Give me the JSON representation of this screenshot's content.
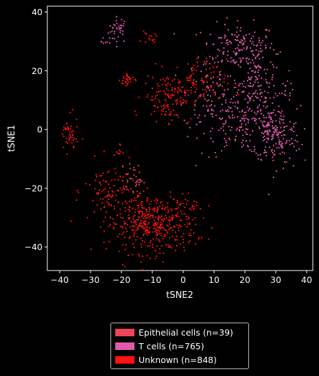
{
  "chart_data": {
    "type": "scatter",
    "xlabel": "tSNE2",
    "ylabel": "tSNE1",
    "xlim": [
      -44,
      42
    ],
    "ylim": [
      -48,
      42
    ],
    "x_ticks": [
      "−40",
      "−30",
      "−20",
      "−10",
      "0",
      "10",
      "20",
      "30",
      "40"
    ],
    "y_ticks": [
      "−40",
      "−20",
      "0",
      "20",
      "40"
    ],
    "legend_position": "below",
    "series": [
      {
        "name": "Epithelial cells (n=39)",
        "color": "#ee4455",
        "n": 39,
        "clusters": [
          {
            "x": -16,
            "y": -17,
            "sx": 1.5,
            "sy": 2.5,
            "n": 39
          }
        ]
      },
      {
        "name": "T cells (n=765)",
        "color": "#e05aad",
        "n": 765,
        "clusters": [
          {
            "x": -21,
            "y": 34,
            "sx": 1.6,
            "sy": 2.2,
            "n": 35
          },
          {
            "x": -25,
            "y": 30,
            "sx": 0.8,
            "sy": 0.8,
            "n": 8
          },
          {
            "x": 18,
            "y": 28,
            "sx": 6,
            "sy": 4,
            "n": 160
          },
          {
            "x": 24,
            "y": 17,
            "sx": 3,
            "sy": 5,
            "n": 100
          },
          {
            "x": 20,
            "y": 3,
            "sx": 7,
            "sy": 6,
            "n": 200
          },
          {
            "x": 30,
            "y": -2,
            "sx": 4,
            "sy": 5,
            "n": 170
          },
          {
            "x": 8,
            "y": 12,
            "sx": 4,
            "sy": 6,
            "n": 80
          },
          {
            "x": 33,
            "y": 13,
            "sx": 1.2,
            "sy": 1.5,
            "n": 12
          }
        ]
      },
      {
        "name": "Unknown (n=848)",
        "color": "#ff1111",
        "n": 848,
        "clusters": [
          {
            "x": -10,
            "y": -32,
            "sx": 7,
            "sy": 5,
            "n": 440
          },
          {
            "x": -24,
            "y": -21,
            "sx": 4,
            "sy": 5,
            "n": 85
          },
          {
            "x": -37,
            "y": -2,
            "sx": 1.5,
            "sy": 3,
            "n": 45
          },
          {
            "x": -18,
            "y": 17,
            "sx": 1.2,
            "sy": 1.5,
            "n": 28
          },
          {
            "x": -11,
            "y": 31,
            "sx": 1.2,
            "sy": 1,
            "n": 15
          },
          {
            "x": -5,
            "y": 11,
            "sx": 4,
            "sy": 4,
            "n": 120
          },
          {
            "x": 4,
            "y": 16,
            "sx": 5,
            "sy": 4,
            "n": 95
          },
          {
            "x": -21,
            "y": -7,
            "sx": 0.8,
            "sy": 1.2,
            "n": 8
          },
          {
            "x": 3,
            "y": -26,
            "sx": 2,
            "sy": 2,
            "n": 12
          }
        ]
      }
    ]
  },
  "legend": {
    "items": [
      {
        "label": "Epithelial cells (n=39)",
        "color": "#ee4455"
      },
      {
        "label": "T cells (n=765)",
        "color": "#e05aad"
      },
      {
        "label": "Unknown (n=848)",
        "color": "#ff1111"
      }
    ]
  }
}
